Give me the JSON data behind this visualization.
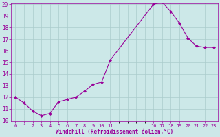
{
  "x": [
    0,
    1,
    2,
    3,
    4,
    5,
    6,
    7,
    8,
    9,
    10,
    11,
    16,
    17,
    18,
    19,
    20,
    21,
    22,
    23
  ],
  "y": [
    12.0,
    11.5,
    10.8,
    10.4,
    10.6,
    11.6,
    11.8,
    12.0,
    12.5,
    13.1,
    13.3,
    15.2,
    20.0,
    20.2,
    19.4,
    18.4,
    17.1,
    16.4,
    16.3,
    16.3
  ],
  "line_color": "#990099",
  "marker": "D",
  "marker_size": 2,
  "bg_color": "#cce8e8",
  "grid_color": "#aacccc",
  "xlabel": "Windchill (Refroidissement éolien,°C)",
  "xlabel_color": "#990099",
  "tick_color": "#990099",
  "ylim": [
    10,
    20
  ],
  "yticks": [
    10,
    11,
    12,
    13,
    14,
    15,
    16,
    17,
    18,
    19,
    20
  ],
  "xlim": [
    -0.5,
    23.5
  ],
  "xtick_positions": [
    0,
    1,
    2,
    3,
    4,
    5,
    6,
    7,
    8,
    9,
    10,
    11,
    16,
    17,
    18,
    19,
    20,
    21,
    22,
    23
  ],
  "xtick_labels": [
    "0",
    "1",
    "2",
    "3",
    "4",
    "5",
    "6",
    "7",
    "8",
    "9",
    "10",
    "11",
    "16",
    "17",
    "18",
    "19",
    "20",
    "21",
    "22",
    "23"
  ]
}
